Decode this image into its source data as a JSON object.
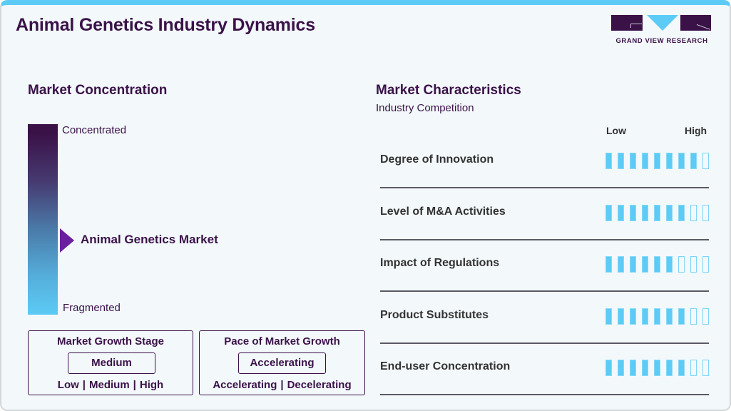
{
  "header": {
    "title": "Animal Genetics Industry Dynamics",
    "logo_text": "GRAND VIEW RESEARCH"
  },
  "colors": {
    "primary": "#3a1248",
    "accent": "#5ccbf5",
    "marker": "#6a1fa0",
    "background": "#f3f8fb"
  },
  "market_concentration": {
    "title": "Market Concentration",
    "top_label": "Concentrated",
    "bottom_label": "Fragmented",
    "marker_label": "Animal Genetics Market"
  },
  "growth_stage": {
    "title": "Market Growth Stage",
    "selected": "Medium",
    "options": [
      "Low",
      "Medium",
      "High"
    ]
  },
  "growth_pace": {
    "title": "Pace of Market Growth",
    "selected": "Accelerating",
    "options": [
      "Accelerating",
      "Decelerating"
    ]
  },
  "market_characteristics": {
    "title": "Market Characteristics",
    "subtitle": "Industry Competition",
    "scale_low": "Low",
    "scale_high": "High",
    "max_rating": 9,
    "items": [
      {
        "label": "Degree of Innovation",
        "rating": 8
      },
      {
        "label": "Level of M&A Activities",
        "rating": 7
      },
      {
        "label": "Impact of Regulations",
        "rating": 6
      },
      {
        "label": "Product Substitutes",
        "rating": 7
      },
      {
        "label": "End-user Concentration",
        "rating": 7
      }
    ]
  },
  "chart_data": {
    "type": "table",
    "title": "Market Characteristics - Industry Competition",
    "scale": {
      "min_label": "Low",
      "max_label": "High",
      "max": 9
    },
    "categories": [
      "Degree of Innovation",
      "Level of M&A Activities",
      "Impact of Regulations",
      "Product Substitutes",
      "End-user Concentration"
    ],
    "values": [
      8,
      7,
      6,
      7,
      7
    ]
  }
}
